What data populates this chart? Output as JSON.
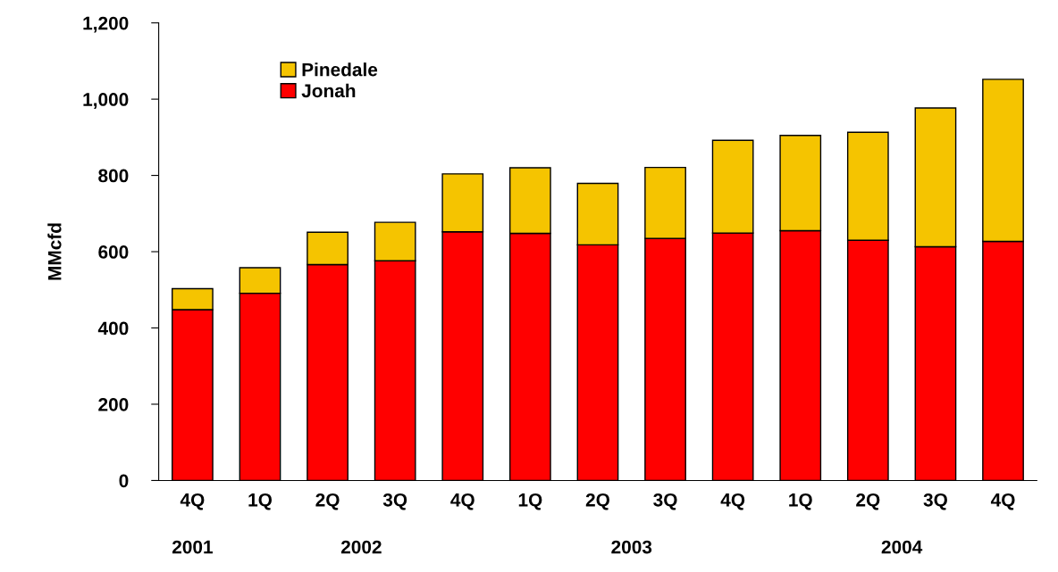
{
  "chart_data": {
    "type": "bar",
    "stacked": true,
    "ylabel": "MMcfd",
    "categories": [
      "4Q",
      "1Q",
      "2Q",
      "3Q",
      "4Q",
      "1Q",
      "2Q",
      "3Q",
      "4Q",
      "1Q",
      "2Q",
      "3Q",
      "4Q"
    ],
    "series": [
      {
        "name": "Jonah",
        "color": "#ff0000",
        "values": [
          448,
          491,
          566,
          576,
          652,
          648,
          618,
          635,
          649,
          655,
          630,
          613,
          627
        ]
      },
      {
        "name": "Pinedale",
        "color": "#f5c400",
        "values": [
          55,
          67,
          85,
          101,
          152,
          172,
          161,
          186,
          243,
          250,
          283,
          364,
          425
        ]
      }
    ],
    "annotations": [
      "2001",
      "2002",
      "2003",
      "2004"
    ],
    "ylim": [
      0,
      1200
    ],
    "yticks": [
      0,
      {
        "value": 200,
        "label": "200"
      },
      {
        "value": 400,
        "label": "400"
      },
      {
        "value": 600,
        "label": "600"
      },
      {
        "value": 800,
        "label": "800"
      },
      {
        "value": 1000,
        "label": "1,000"
      },
      {
        "value": 1200,
        "label": "1,200"
      }
    ],
    "grid": false,
    "legend": "top left"
  }
}
